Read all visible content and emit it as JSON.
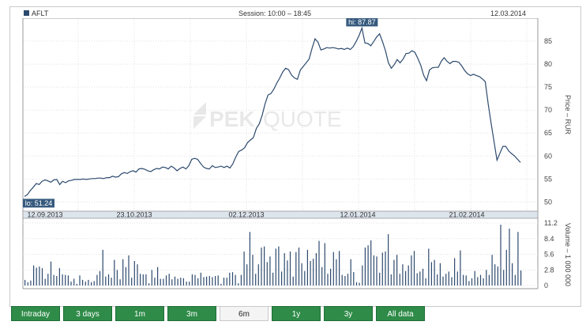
{
  "header": {
    "ticker": "AFLT",
    "session": "Session: 10:00 – 18:45",
    "date": "12.03.2014"
  },
  "colors": {
    "line": "#2d4a6e",
    "badge": "#365a7e",
    "tab": "#2e8b48",
    "tab_active": "#f4f4f4"
  },
  "watermark": {
    "left": "PEK",
    "right": "QUOTE"
  },
  "tabs": [
    {
      "label": "Intraday",
      "active": false
    },
    {
      "label": "3 days",
      "active": false
    },
    {
      "label": "1m",
      "active": false
    },
    {
      "label": "3m",
      "active": false
    },
    {
      "label": "6m",
      "active": true
    },
    {
      "label": "1y",
      "active": false
    },
    {
      "label": "3y",
      "active": false
    },
    {
      "label": "All data",
      "active": false
    }
  ],
  "chart_data": [
    {
      "type": "line",
      "ylabel": "Price – RUR",
      "ylim": [
        48,
        90
      ],
      "yticks": [
        50,
        55,
        60,
        65,
        70,
        75,
        80,
        85
      ],
      "xticks": [
        "12.09.2013",
        "23.10.2013",
        "02.12.2013",
        "12.01.2014",
        "21.02.2014"
      ],
      "annotations": {
        "hi": "hi: 87.87",
        "lo": "lo: 51.24"
      },
      "grid": true,
      "series": [
        {
          "values": [
            51.2,
            51.6,
            52.5,
            53.2,
            54.0,
            53.8,
            54.5,
            54.8,
            54.6,
            54.3,
            54.8,
            54.9,
            53.8,
            54.5,
            54.2,
            54.6,
            54.7,
            54.9,
            54.9,
            54.9,
            55.0,
            54.9,
            55.0,
            55.1,
            55.1,
            55.2,
            55.2,
            55.1,
            55.3,
            55.3,
            55.6,
            55.4,
            55.5,
            56.1,
            56.4,
            56.2,
            56.6,
            56.8,
            56.5,
            57.2,
            57.3,
            57.1,
            56.8,
            56.6,
            57.0,
            57.3,
            57.2,
            57.6,
            57.5,
            57.2,
            57.8,
            57.4,
            56.8,
            57.3,
            57.6,
            57.2,
            57.9,
            59.3,
            59.5,
            59.3,
            58.4,
            57.6,
            57.3,
            57.2,
            57.9,
            57.5,
            57.6,
            57.8,
            57.5,
            57.8,
            57.4,
            58.3,
            59.8,
            61.0,
            61.3,
            61.8,
            62.9,
            63.5,
            64.0,
            66.0,
            67.0,
            68.9,
            71.4,
            73.3,
            73.6,
            74.6,
            75.9,
            77.0,
            78.3,
            79.1,
            78.8,
            77.6,
            77.0,
            76.7,
            78.7,
            79.5,
            80.3,
            81.1,
            83.5,
            85.5,
            84.8,
            83.1,
            83.3,
            83.6,
            83.5,
            83.6,
            83.5,
            83.3,
            83.4,
            83.2,
            83.5,
            83.2,
            83.8,
            84.9,
            86.2,
            87.87,
            84.6,
            84.5,
            84.0,
            84.9,
            85.9,
            86.6,
            84.9,
            82.9,
            80.3,
            79.1,
            79.9,
            81.0,
            80.3,
            81.1,
            82.3,
            82.4,
            82.9,
            82.6,
            81.3,
            79.8,
            77.6,
            76.4,
            78.7,
            79.2,
            79.3,
            79.3,
            80.6,
            81.4,
            80.6,
            80.1,
            80.6,
            80.6,
            80.4,
            79.6,
            78.6,
            77.9,
            77.5,
            77.8,
            77.5,
            77.3,
            76.8,
            76.2,
            71.4,
            67.2,
            63.1,
            59.1,
            60.6,
            62.1,
            62.1,
            61.1,
            60.5,
            60.0,
            59.3,
            58.6
          ]
        }
      ]
    },
    {
      "type": "bar",
      "ylabel": "Volume – 1 000 000",
      "ylim": [
        0,
        11.2
      ],
      "yticks": [
        0,
        2.8,
        5.6,
        8.4,
        11.2
      ],
      "ytick_labels": [
        "0",
        "2.8",
        "5.6",
        "8.4",
        "11.2"
      ],
      "series": [
        {
          "values": [
            1.0,
            0.6,
            0.9,
            3.6,
            3.2,
            3.4,
            3.1,
            1.2,
            2.1,
            4.3,
            1.9,
            1.7,
            3.1,
            2.0,
            1.9,
            1.8,
            0.7,
            1.2,
            0.3,
            1.8,
            1.0,
            0.7,
            1.0,
            0.6,
            0.8,
            1.9,
            2.6,
            6.4,
            1.6,
            2.0,
            1.4,
            4.6,
            2.8,
            1.1,
            4.7,
            3.3,
            5.4,
            1.4,
            4.4,
            3.8,
            2.1,
            2.0,
            2.0,
            0.4,
            2.8,
            1.4,
            3.3,
            1.2,
            1.2,
            1.8,
            2.1,
            1.1,
            1.6,
            1.2,
            1.4,
            1.3,
            0.7,
            0.7,
            2.0,
            1.9,
            1.3,
            2.3,
            1.5,
            1.6,
            1.7,
            1.5,
            1.7,
            1.8,
            0.3,
            1.4,
            1.4,
            2.3,
            2.4,
            1.9,
            0.4,
            1.9,
            6.1,
            3.8,
            9.6,
            5.5,
            2.1,
            3.8,
            6.8,
            7.0,
            4.2,
            5.2,
            2.3,
            6.6,
            7.0,
            2.5,
            5.8,
            4.5,
            6.1,
            1.6,
            6.0,
            6.8,
            4.0,
            2.6,
            6.4,
            4.4,
            4.8,
            5.8,
            8.0,
            3.3,
            7.6,
            2.1,
            3.0,
            6.0,
            4.7,
            6.2,
            1.9,
            1.7,
            2.1,
            4.7,
            2.4,
            0.6,
            0.5,
            3.6,
            6.8,
            7.2,
            8.1,
            5.4,
            5.2,
            2.3,
            5.9,
            6.1,
            9.2,
            2.0,
            4.6,
            5.5,
            2.1,
            3.8,
            2.6,
            3.6,
            5.4,
            6.2,
            2.2,
            2.5,
            3.0,
            1.3,
            6.6,
            4.2,
            4.6,
            2.0,
            4.0,
            1.6,
            2.1,
            2.5,
            1.5,
            4.9,
            2.5,
            6.3,
            1.9,
            1.8,
            0.8,
            1.3,
            2.6,
            1.5,
            1.9,
            1.3,
            2.8,
            1.9,
            5.5,
            3.8,
            3.4,
            10.9,
            2.8,
            6.4,
            10.2,
            4.0,
            1.9,
            9.6,
            2.7
          ]
        }
      ]
    }
  ]
}
